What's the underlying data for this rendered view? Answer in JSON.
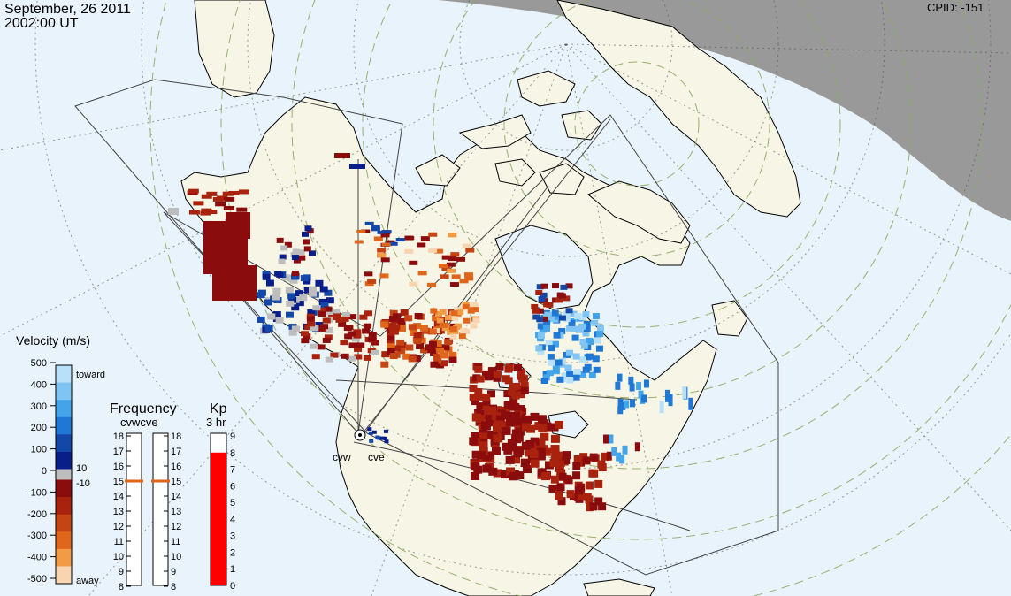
{
  "header": {
    "date": "September, 26 2011",
    "time": "2002:00 UT",
    "cpid_label": "CPID:",
    "cpid_value": "-151"
  },
  "radars": {
    "west_label": "cvw",
    "east_label": "cve"
  },
  "velocity_scale": {
    "title": "Velocity (m/s)",
    "ticks": [
      "500",
      "400",
      "300",
      "200",
      "100",
      "0",
      "-100",
      "-200",
      "-300",
      "-400",
      "-500"
    ],
    "toward_label": "toward",
    "away_label": "away",
    "threshold_pos": "10",
    "threshold_neg": "-10",
    "colors_toward": [
      "#b8e0f8",
      "#7fc4f2",
      "#44a4ea",
      "#1e78d4",
      "#1448a8",
      "#0a1e8a"
    ],
    "colors_away": [
      "#8a0c0c",
      "#a8220e",
      "#c44414",
      "#e0661c",
      "#f29a44",
      "#f8d4b0"
    ]
  },
  "frequency": {
    "title": "Frequency",
    "subtitle": "cvwcve",
    "ticks_left": [
      "18",
      "17",
      "16",
      "15",
      "14",
      "13",
      "12",
      "11",
      "10",
      "9",
      "8"
    ],
    "ticks_right": [
      "18",
      "17",
      "16",
      "15",
      "14",
      "13",
      "12",
      "11",
      "10",
      "9",
      "8"
    ],
    "cvw_mhz": 15,
    "cve_mhz": 15,
    "marker_color": "#e0661c"
  },
  "kp": {
    "title": "Kp",
    "subtitle": "3 hr",
    "ticks": [
      "9",
      "8",
      "7",
      "6",
      "5",
      "4",
      "3",
      "2",
      "1",
      "0"
    ],
    "value": 8,
    "fill_color": "#ff0000"
  },
  "map_colors": {
    "ocean": "#e8f3fb",
    "land": "#f7f5e6",
    "night": "#999999",
    "ground_scatter": "#bdbdbd"
  }
}
